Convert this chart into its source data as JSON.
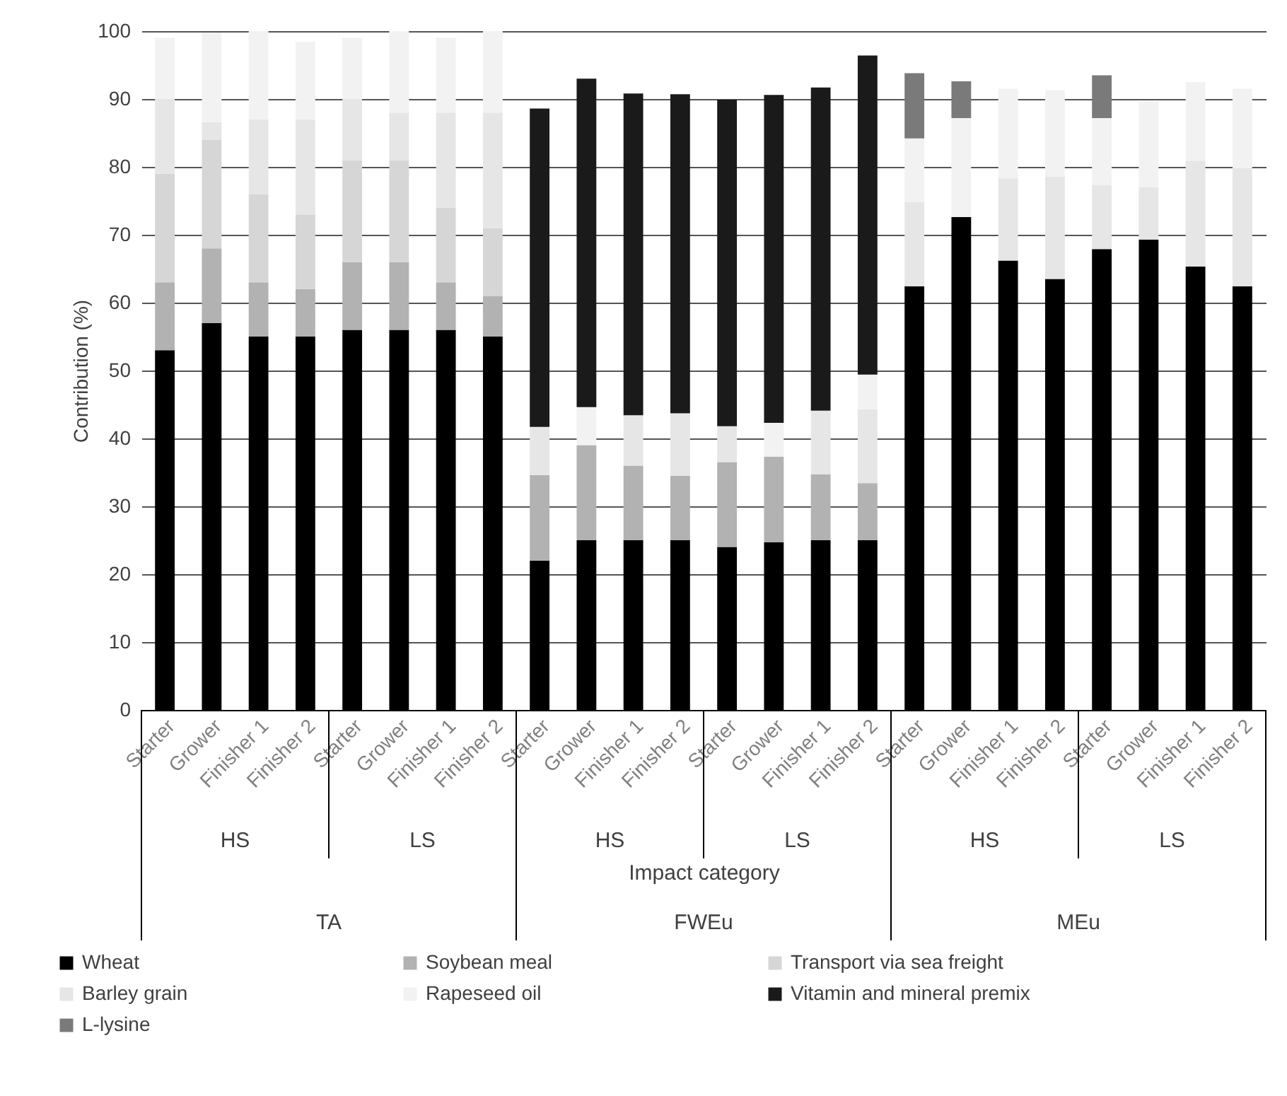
{
  "chart_data": {
    "type": "bar",
    "stacked": true,
    "xlabel": "Impact category",
    "ylabel": "Contribution (%)",
    "categories": [
      "Starter",
      "Grower",
      "Finisher 1",
      "Finisher 2",
      "Starter",
      "Grower",
      "Finisher 1",
      "Finisher 2",
      "Starter",
      "Grower",
      "Finisher 1",
      "Finisher 2",
      "Starter",
      "Grower",
      "Finisher 1",
      "Finisher 2",
      "Starter",
      "Grower",
      "Finisher 1",
      "Finisher 2",
      "Starter",
      "Grower",
      "Finisher 1",
      "Finisher 2"
    ],
    "annotations": [
      "HS",
      "LS",
      "HS",
      "LS",
      "HS",
      "LS",
      "TA",
      "FWEu",
      "MEu"
    ],
    "series": [
      {
        "name": "Wheat",
        "color": "#000000",
        "values": [
          53,
          57,
          55,
          55,
          56,
          56,
          56,
          55,
          22,
          25,
          25,
          25,
          24,
          24.7,
          25,
          25,
          62.4,
          72.6,
          66.2,
          63.5,
          67.9,
          69.3,
          65.3,
          62.4
        ]
      },
      {
        "name": "Soybean meal",
        "color": "#b2b2b2",
        "values": [
          10,
          11,
          8,
          7,
          10,
          10,
          7,
          6,
          12.6,
          14,
          11,
          9.5,
          12.5,
          12.6,
          9.7,
          8.4,
          null,
          null,
          null,
          null,
          null,
          null,
          null,
          null
        ]
      },
      {
        "name": "Transport via sea freight",
        "color": "#d6d6d6",
        "values": [
          16,
          16,
          13,
          11,
          15,
          15,
          11,
          10,
          null,
          null,
          null,
          null,
          null,
          null,
          null,
          null,
          null,
          null,
          null,
          null,
          null,
          null,
          null,
          null
        ]
      },
      {
        "name": "Barley grain",
        "color": "#e6e6e6",
        "values": [
          11,
          2.6,
          11,
          14,
          9,
          7,
          14,
          17,
          7.1,
          null,
          7.4,
          9.2,
          5.3,
          null,
          9.4,
          10.9,
          12.4,
          null,
          12.1,
          15.1,
          9.4,
          7.7,
          15.6,
          17.4
        ]
      },
      {
        "name": "Rapeseed oil",
        "color": "#f2f2f2",
        "values": [
          9,
          13.2,
          13,
          11.4,
          9,
          12,
          11,
          12,
          null,
          5.6,
          null,
          null,
          null,
          5,
          null,
          5.1,
          9.4,
          14.6,
          13.2,
          12.7,
          9.9,
          12.7,
          11.6,
          11.7
        ]
      },
      {
        "name": "Vitamin and mineral premix",
        "color": "#1a1a1a",
        "values": [
          null,
          null,
          null,
          null,
          null,
          null,
          null,
          null,
          46.9,
          48.4,
          47.4,
          47,
          48.1,
          48.3,
          47.6,
          47,
          null,
          null,
          null,
          null,
          null,
          null,
          null,
          null
        ]
      },
      {
        "name": "L-lysine",
        "color": "#7a7a7a",
        "values": [
          null,
          null,
          null,
          null,
          null,
          null,
          null,
          null,
          null,
          null,
          null,
          null,
          null,
          null,
          null,
          null,
          9.6,
          5.4,
          null,
          null,
          6.3,
          null,
          null,
          null
        ]
      }
    ],
    "ylim": [
      0,
      100
    ],
    "yticks": [
      0,
      10,
      20,
      30,
      40,
      50,
      60,
      70,
      80,
      90,
      100
    ],
    "grid": "y",
    "legend": "bottom"
  }
}
